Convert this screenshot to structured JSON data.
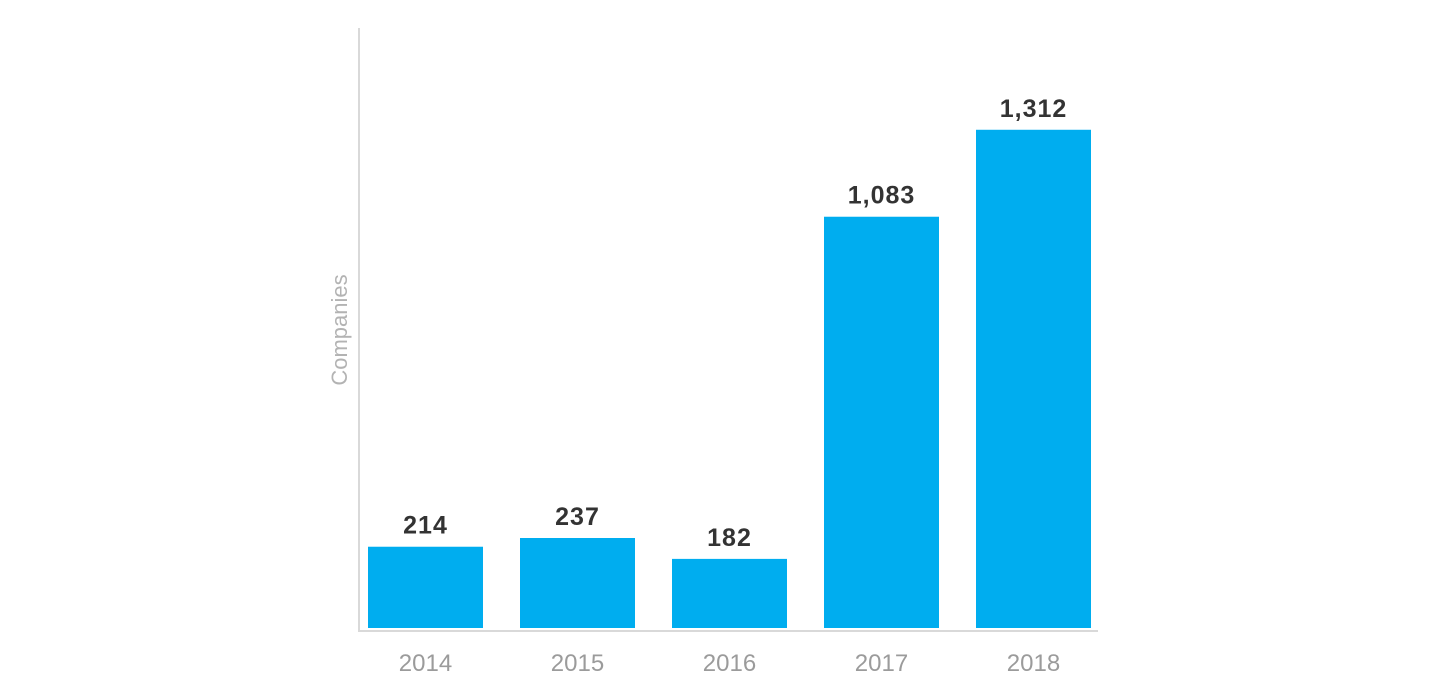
{
  "chart_data": {
    "type": "bar",
    "title": "",
    "xlabel": "",
    "ylabel": "Companies",
    "categories": [
      "2014",
      "2015",
      "2016",
      "2017",
      "2018"
    ],
    "values": [
      214,
      237,
      182,
      1083,
      1312
    ],
    "data_labels": [
      "214",
      "237",
      "182",
      "1,083",
      "1,312"
    ],
    "ylim": [
      0,
      1580
    ],
    "grid": false,
    "legend": "none",
    "bar_color": "#00adef"
  }
}
